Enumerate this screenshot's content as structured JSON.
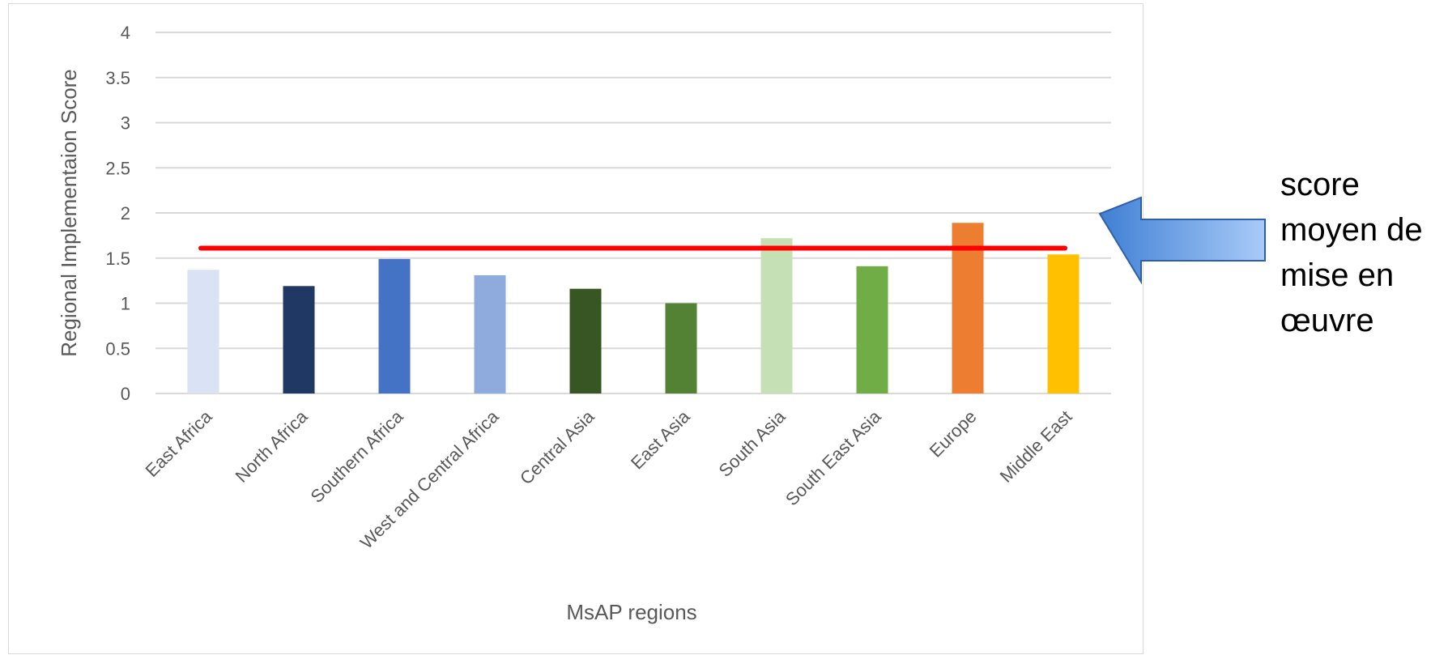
{
  "chart_data": {
    "type": "bar",
    "categories": [
      "East Africa",
      "North Africa",
      "Southern Africa",
      "West and Central Africa",
      "Central Asia",
      "East Asia",
      "South Asia",
      "South East Asia",
      "Europe",
      "Middle East"
    ],
    "values": [
      1.37,
      1.19,
      1.49,
      1.31,
      1.16,
      1.0,
      1.72,
      1.41,
      1.89,
      1.54
    ],
    "colors": [
      "#dae3f3",
      "#203864",
      "#4472c4",
      "#8faadc",
      "#375623",
      "#548235",
      "#c5e0b4",
      "#70ad47",
      "#ed7d31",
      "#ffc000"
    ],
    "title": "",
    "xlabel": "MsAP regions",
    "ylabel": "Regional Implementaion Score",
    "ylim": [
      0,
      4
    ],
    "yticks": [
      "0",
      "0.5",
      "1",
      "1.5",
      "2",
      "2.5",
      "3",
      "3.5",
      "4"
    ],
    "grid": true,
    "reference_line": {
      "value": 1.61,
      "color": "#ff0000"
    },
    "annotation": {
      "lines": [
        "score",
        "moyen de",
        "mise en",
        "œuvre"
      ],
      "arrow_color": "#4a86d8"
    }
  }
}
